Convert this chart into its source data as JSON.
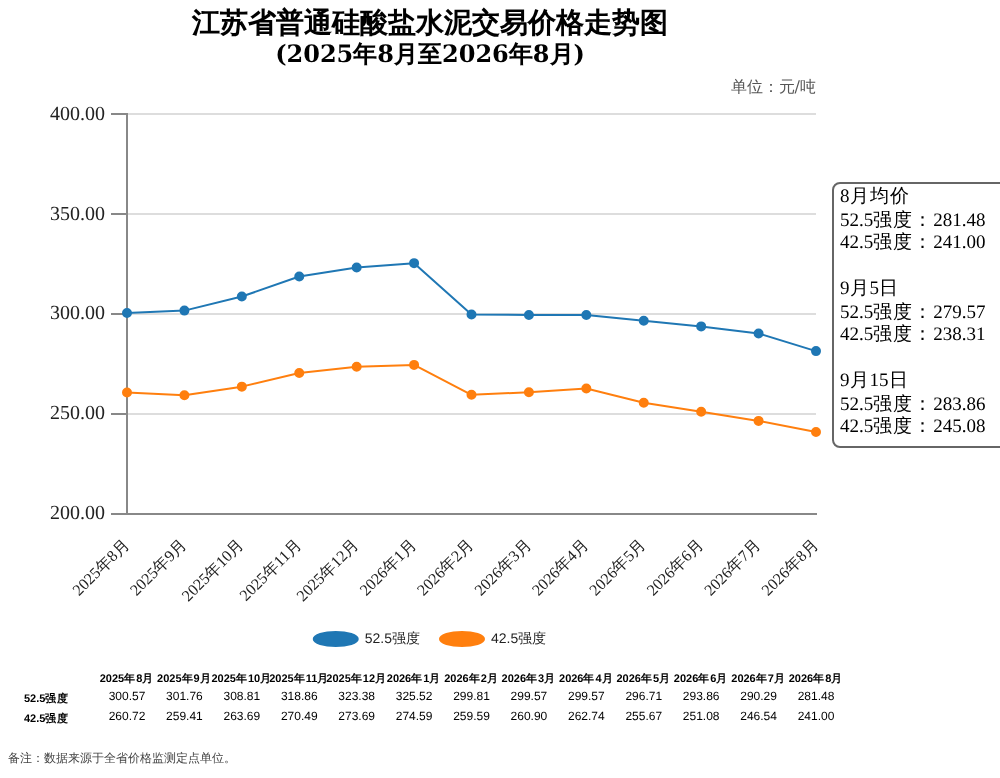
{
  "chart_data": {
    "type": "line",
    "title": "江苏省普通硅酸盐水泥交易价格走势图",
    "subtitle": "(2025年8月至2026年8月)",
    "categories": [
      "2025年8月",
      "2025年9月",
      "2025年10月",
      "2025年11月",
      "2025年12月",
      "2026年1月",
      "2026年2月",
      "2026年3月",
      "2026年4月",
      "2026年5月",
      "2026年6月",
      "2026年7月",
      "2026年8月"
    ],
    "series": [
      {
        "name": "52.5强度",
        "color": "#1f77b4",
        "values": [
          300.57,
          301.76,
          308.81,
          318.86,
          323.38,
          325.52,
          299.81,
          299.57,
          299.57,
          296.71,
          293.86,
          290.29,
          281.48
        ],
        "value_labels": [
          "300.57",
          "301.76",
          "308.81",
          "318.86",
          "323.38",
          "325.52",
          "299.81",
          "299.57",
          "299.57",
          "296.71",
          "293.86",
          "290.29",
          "281.48"
        ]
      },
      {
        "name": "42.5强度",
        "color": "#ff7f0e",
        "values": [
          260.72,
          259.41,
          263.69,
          270.49,
          273.69,
          274.59,
          259.59,
          260.9,
          262.74,
          255.67,
          251.08,
          246.54,
          241.0
        ],
        "value_labels": [
          "260.72",
          "259.41",
          "263.69",
          "270.49",
          "273.69",
          "274.59",
          "259.59",
          "260.90",
          "262.74",
          "255.67",
          "251.08",
          "246.54",
          "241.00"
        ]
      }
    ],
    "ylim": [
      200,
      400
    ],
    "yticks": [
      {
        "value": 200,
        "label": "200.00"
      },
      {
        "value": 250,
        "label": "250.00"
      },
      {
        "value": 300,
        "label": "300.00"
      },
      {
        "value": 350,
        "label": "350.00"
      },
      {
        "value": 400,
        "label": "400.00"
      }
    ],
    "grid": "y",
    "legend": "bottom",
    "marker": "circle",
    "line_style": "solid",
    "annotations": [
      "单位：元/吨",
      "8月均价\n52.5强度：281.48\n42.5强度：241.00\n\n9月5日\n52.5强度：279.57\n42.5强度：238.31\n\n9月15日\n52.5强度：283.86\n42.5强度：245.08",
      "备注：数据来源于全省价格监测定点单位。"
    ]
  }
}
